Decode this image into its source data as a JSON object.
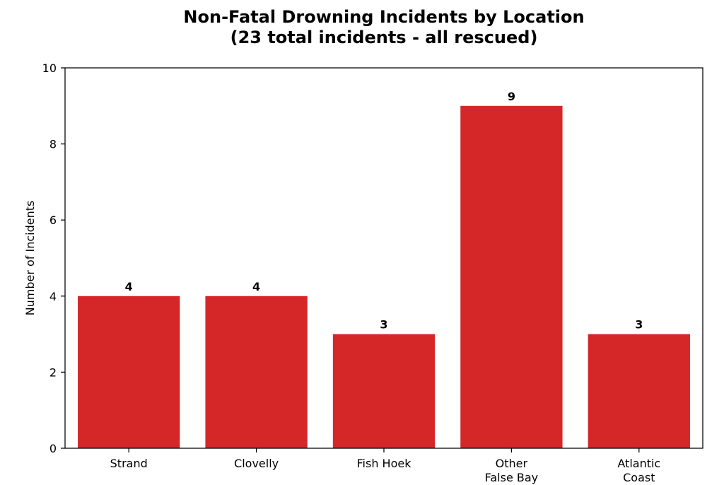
{
  "chart_data": {
    "type": "bar",
    "title": "Non-Fatal Drowning Incidents by Location",
    "subtitle": "(23 total incidents - all rescued)",
    "xlabel": "",
    "ylabel": "Number of Incidents",
    "categories": [
      [
        "Strand"
      ],
      [
        "Clovelly"
      ],
      [
        "Fish Hoek"
      ],
      [
        "Other",
        "False Bay"
      ],
      [
        "Atlantic",
        "Coast"
      ]
    ],
    "values": [
      4,
      4,
      3,
      9,
      3
    ],
    "data_labels": [
      "4",
      "4",
      "3",
      "9",
      "3"
    ],
    "ylim": [
      0,
      10
    ],
    "yticks": [
      0,
      2,
      4,
      6,
      8,
      10
    ],
    "ytick_labels": [
      "0",
      "2",
      "4",
      "6",
      "8",
      "10"
    ],
    "bar_color": "#d62728",
    "grid": false,
    "legend": "none"
  }
}
